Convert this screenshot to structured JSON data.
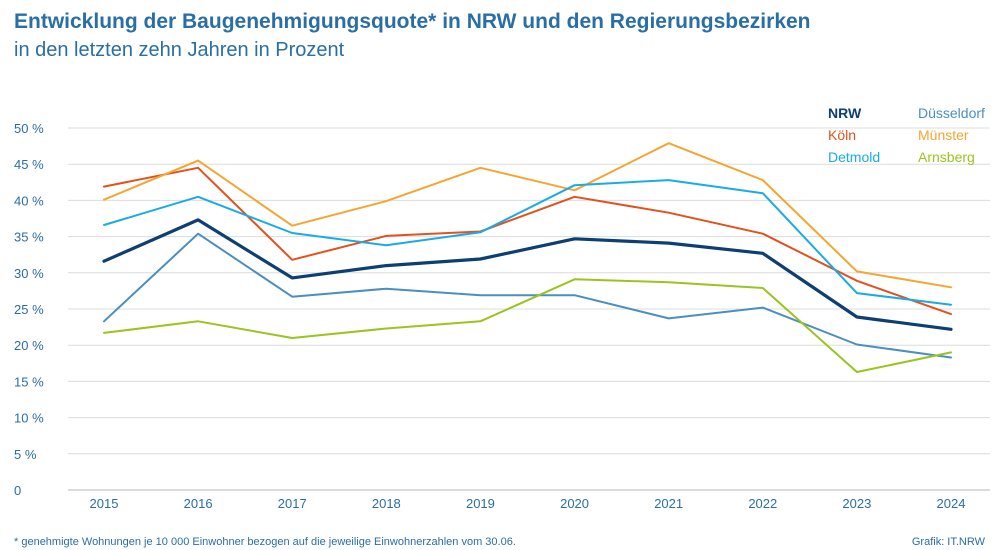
{
  "header": {
    "title": "Entwicklung der Baugenehmigungsquote* in NRW und den Regierungsbezirken",
    "subtitle": "in den letzten zehn Jahren in Prozent"
  },
  "footer": {
    "footnote": "* genehmigte Wohnungen je 10 000 Einwohner bezogen auf die jeweilige Einwohnerzahlen vom 30.06.",
    "source": "Grafik: IT.NRW"
  },
  "chart_data": {
    "type": "line",
    "title": "Entwicklung der Baugenehmigungsquote* in NRW und den Regierungsbezirken",
    "subtitle": "in den letzten zehn Jahren in Prozent",
    "x": [
      2015,
      2016,
      2017,
      2018,
      2019,
      2020,
      2021,
      2022,
      2023,
      2024
    ],
    "x_tick_labels": [
      "2015",
      "2016",
      "2017",
      "2018",
      "2019",
      "2020",
      "2021",
      "2022",
      "2023",
      "2024"
    ],
    "ylim": [
      0,
      50
    ],
    "y_ticks": [
      0,
      5,
      10,
      15,
      20,
      25,
      30,
      35,
      40,
      45,
      50
    ],
    "y_tick_labels": [
      "0",
      "5 %",
      "10 %",
      "15 %",
      "20 %",
      "25 %",
      "30 %",
      "35 %",
      "40 %",
      "45 %",
      "50 %"
    ],
    "grid": "horizontal",
    "legend_position": "top-right",
    "series": [
      {
        "name": "NRW",
        "color": "#0d3f73",
        "width": 3.2,
        "bold": true,
        "values": [
          31.6,
          37.3,
          29.3,
          31.0,
          31.9,
          34.7,
          34.1,
          32.7,
          23.9,
          22.2
        ]
      },
      {
        "name": "Düsseldorf",
        "color": "#4a8fc0",
        "width": 2,
        "values": [
          23.3,
          35.4,
          26.7,
          27.8,
          26.9,
          26.9,
          23.7,
          25.2,
          20.1,
          18.3
        ]
      },
      {
        "name": "Köln",
        "color": "#e2511e",
        "width": 2,
        "values": [
          41.9,
          44.5,
          31.8,
          35.1,
          35.7,
          40.5,
          38.3,
          35.4,
          28.9,
          24.3
        ]
      },
      {
        "name": "Münster",
        "color": "#f6a530",
        "width": 2,
        "values": [
          40.1,
          45.5,
          36.5,
          39.9,
          44.5,
          41.4,
          47.9,
          42.8,
          30.2,
          28.0
        ]
      },
      {
        "name": "Detmold",
        "color": "#19ace4",
        "width": 2,
        "values": [
          36.6,
          40.5,
          35.5,
          33.8,
          35.6,
          42.1,
          42.8,
          41.0,
          27.2,
          25.6
        ]
      },
      {
        "name": "Arnsberg",
        "color": "#9bc41d",
        "width": 2,
        "values": [
          21.7,
          23.3,
          21.0,
          22.3,
          23.3,
          29.1,
          28.7,
          27.9,
          16.3,
          19.0
        ]
      }
    ]
  }
}
